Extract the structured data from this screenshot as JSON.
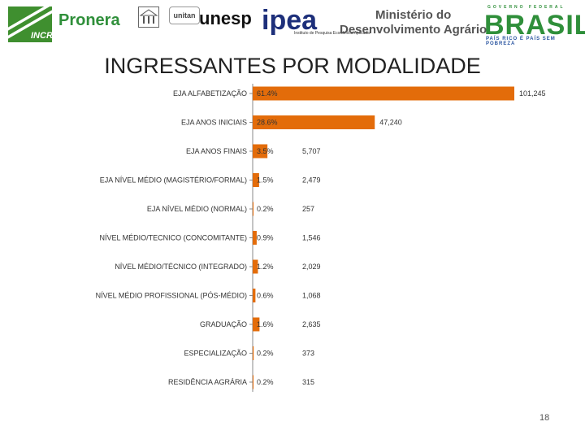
{
  "logos": {
    "incra": "INCRA",
    "pronera": "Pronera",
    "unitan": "unitan",
    "unesp": "unesp",
    "ipea": "ipea",
    "ipea_caption": "Instituto de Pesquisa Econômica Aplicada",
    "mda_line1": "Ministério do",
    "mda_line2": "Desenvolvimento Agrário",
    "brasil_top": "GOVERNO FEDERAL",
    "brasil": "BRASIL",
    "brasil_bottom": "PAÍS RICO É PAÍS SEM POBREZA"
  },
  "colors": {
    "bar": "#e36c0a",
    "axis": "#888888"
  },
  "chart_data": {
    "type": "bar",
    "orientation": "horizontal",
    "title": "INGRESSANTES POR MODALIDADE",
    "categories": [
      "EJA ALFABETIZAÇÃO",
      "EJA ANOS INICIAIS",
      "EJA ANOS FINAIS",
      "EJA NÍVEL MÉDIO (MAGISTÉRIO/FORMAL)",
      "EJA NÍVEL MÉDIO (NORMAL)",
      "NÍVEL MÉDIO/TECNICO (CONCOMITANTE)",
      "NÍVEL MÉDIO/TÉCNICO (INTEGRADO)",
      "NÍVEL MÉDIO PROFISSIONAL (PÓS-MÉDIO)",
      "GRADUAÇÃO",
      "ESPECIALIZAÇÃO",
      "RESIDÊNCIA AGRÁRIA"
    ],
    "values": [
      101245,
      47240,
      5707,
      2479,
      257,
      1546,
      2029,
      1068,
      2635,
      373,
      315
    ],
    "value_labels": [
      "101,245",
      "47,240",
      "5,707",
      "2,479",
      "257",
      "1,546",
      "2,029",
      "1,068",
      "2,635",
      "373",
      "315"
    ],
    "percent_labels": [
      "61.4%",
      "28.6%",
      "3.5%",
      "1.5%",
      "0.2%",
      "0.9%",
      "1.2%",
      "0.6%",
      "1.6%",
      "0.2%",
      "0.2%"
    ],
    "xlim": [
      0,
      101245
    ]
  },
  "page_number": "18"
}
